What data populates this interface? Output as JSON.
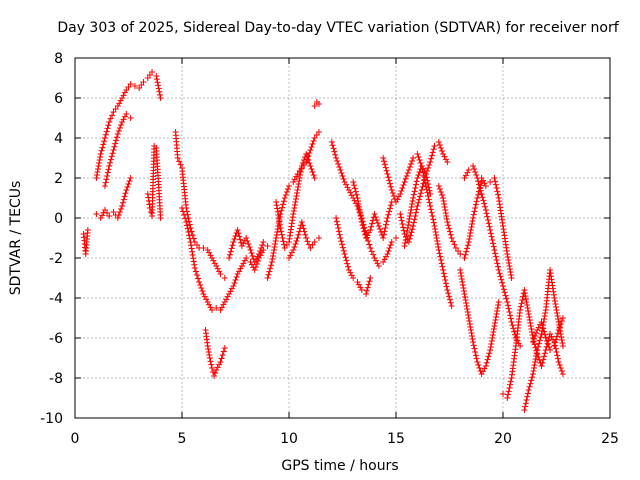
{
  "chart_data": {
    "type": "scatter",
    "title": "Day 303 of 2025, Sidereal Day-to-day VTEC variation (SDTVAR) for receiver norf",
    "xlabel": "GPS time / hours",
    "ylabel": "SDTVAR / TECUs",
    "xlim": [
      0,
      25
    ],
    "ylim": [
      -10,
      8
    ],
    "xticks": [
      0,
      5,
      10,
      15,
      20,
      25
    ],
    "yticks": [
      -10,
      -8,
      -6,
      -4,
      -2,
      0,
      2,
      4,
      6,
      8
    ],
    "xtick_labels": [
      "0",
      "5",
      "10",
      "15",
      "20",
      "25"
    ],
    "ytick_labels": [
      "-10",
      "-8",
      "-6",
      "-4",
      "-2",
      "0",
      "2",
      "4",
      "6",
      "8"
    ],
    "grid": true,
    "marker": "+",
    "color": "#ff0000",
    "series": [
      {
        "name": "s1",
        "x": [
          0.4,
          0.45,
          0.5,
          0.55,
          0.6
        ],
        "y": [
          -0.8,
          -1.3,
          -1.8,
          -1.2,
          -0.6
        ]
      },
      {
        "name": "s2",
        "x": [
          1.0,
          1.2,
          1.4,
          1.6,
          1.8,
          2.0,
          2.2,
          2.4,
          2.6,
          2.8,
          3.0,
          3.2,
          3.4,
          3.6,
          3.8,
          4.0
        ],
        "y": [
          2.0,
          3.2,
          4.0,
          4.8,
          5.3,
          5.6,
          6.0,
          6.4,
          6.7,
          6.6,
          6.5,
          6.8,
          7.0,
          7.3,
          7.1,
          6.0
        ]
      },
      {
        "name": "s3",
        "x": [
          1.0,
          1.2,
          1.4,
          1.6,
          1.8,
          2.0,
          2.2,
          2.4,
          2.6
        ],
        "y": [
          0.2,
          0.0,
          0.4,
          0.1,
          0.3,
          0.0,
          0.6,
          1.4,
          2.0
        ]
      },
      {
        "name": "s4",
        "x": [
          1.4,
          1.6,
          1.8,
          2.0,
          2.2,
          2.4,
          2.6
        ],
        "y": [
          1.6,
          2.6,
          3.4,
          4.2,
          4.8,
          5.2,
          5.0
        ]
      },
      {
        "name": "s5",
        "x": [
          3.4,
          3.5,
          3.6,
          3.7,
          3.8,
          4.0
        ],
        "y": [
          1.2,
          0.5,
          0.1,
          3.6,
          3.5,
          0.0
        ]
      },
      {
        "name": "s6",
        "x": [
          4.7,
          4.8,
          5.0,
          5.2,
          5.4,
          5.6,
          5.8,
          6.0,
          6.2,
          6.4,
          6.6,
          6.8,
          7.0
        ],
        "y": [
          4.3,
          3.0,
          2.5,
          0.5,
          -0.5,
          -1.2,
          -1.5,
          -1.5,
          -1.6,
          -2.0,
          -2.4,
          -2.8,
          -3.0
        ]
      },
      {
        "name": "s7",
        "x": [
          5.0,
          5.2,
          5.4,
          5.6,
          5.8,
          6.0,
          6.2,
          6.4,
          6.6
        ],
        "y": [
          0.5,
          -0.2,
          -1.2,
          -2.5,
          -3.2,
          -3.8,
          -4.2,
          -4.6,
          -4.5
        ]
      },
      {
        "name": "s8",
        "x": [
          6.1,
          6.2,
          6.3,
          6.4,
          6.5,
          6.6,
          6.8,
          7.0
        ],
        "y": [
          -5.6,
          -6.4,
          -7.0,
          -7.5,
          -7.9,
          -7.6,
          -7.2,
          -6.5
        ]
      },
      {
        "name": "s9",
        "x": [
          6.8,
          7.0,
          7.2,
          7.4,
          7.6,
          7.8,
          8.0,
          8.2,
          8.4,
          8.6,
          8.8,
          9.0
        ],
        "y": [
          -4.6,
          -4.2,
          -3.8,
          -3.4,
          -2.8,
          -2.4,
          -2.0,
          -2.2,
          -2.6,
          -2.0,
          -1.6,
          -1.4
        ]
      },
      {
        "name": "s10",
        "x": [
          7.2,
          7.4,
          7.6,
          7.8,
          8.0,
          8.2,
          8.4,
          8.6,
          8.8
        ],
        "y": [
          -2.0,
          -1.2,
          -0.6,
          -1.4,
          -1.0,
          -1.6,
          -2.2,
          -1.8,
          -1.2
        ]
      },
      {
        "name": "s11",
        "x": [
          9.0,
          9.2,
          9.4,
          9.6,
          9.8,
          10.0,
          10.2,
          10.4,
          10.6,
          10.8,
          11.0,
          11.2,
          11.4
        ],
        "y": [
          -3.0,
          -2.2,
          -1.0,
          0.2,
          1.0,
          1.6,
          1.8,
          2.2,
          2.5,
          2.8,
          3.4,
          4.0,
          4.3
        ]
      },
      {
        "name": "s12",
        "x": [
          9.4,
          9.6,
          9.8,
          10.0,
          10.2,
          10.4,
          10.6,
          10.8,
          11.0,
          11.2
        ],
        "y": [
          0.8,
          -0.5,
          -1.5,
          -1.2,
          0.2,
          1.4,
          2.6,
          3.2,
          2.6,
          2.0
        ]
      },
      {
        "name": "s13",
        "x": [
          10.0,
          10.2,
          10.4,
          10.6,
          10.8,
          11.0,
          11.2,
          11.4
        ],
        "y": [
          -2.0,
          -1.6,
          -1.0,
          -0.2,
          -1.0,
          -1.5,
          -1.2,
          -1.0
        ]
      },
      {
        "name": "s14",
        "x": [
          11.2,
          11.3,
          11.4
        ],
        "y": [
          5.6,
          5.8,
          5.7
        ]
      },
      {
        "name": "s15",
        "x": [
          12.0,
          12.2,
          12.4,
          12.6,
          12.8,
          13.0,
          13.2,
          13.4,
          13.6,
          13.8,
          14.0,
          14.2,
          14.4,
          14.6,
          14.8,
          15.0
        ],
        "y": [
          3.8,
          3.0,
          2.4,
          1.8,
          1.4,
          1.0,
          0.6,
          0.0,
          -0.8,
          -1.5,
          -2.0,
          -2.4,
          -2.2,
          -1.8,
          -1.2,
          -1.0
        ]
      },
      {
        "name": "s16",
        "x": [
          12.2,
          12.4,
          12.6,
          12.8,
          13.0,
          13.2,
          13.4,
          13.6,
          13.8
        ],
        "y": [
          0.0,
          -1.0,
          -1.8,
          -2.6,
          -3.0,
          -3.2,
          -3.6,
          -3.8,
          -3.0
        ]
      },
      {
        "name": "s17",
        "x": [
          13.0,
          13.2,
          13.4,
          13.6,
          13.8,
          14.0,
          14.2,
          14.4,
          14.6,
          14.8
        ],
        "y": [
          1.8,
          1.0,
          -0.2,
          -1.0,
          -0.6,
          0.2,
          -0.4,
          -1.0,
          0.0,
          0.8
        ]
      },
      {
        "name": "s18",
        "x": [
          14.4,
          14.6,
          14.8,
          15.0,
          15.2,
          15.4,
          15.6,
          15.8,
          16.0,
          16.2,
          16.4,
          16.6,
          16.8,
          17.0,
          17.2,
          17.4,
          17.6
        ],
        "y": [
          3.0,
          2.2,
          1.4,
          0.8,
          1.2,
          1.8,
          2.4,
          3.0,
          3.2,
          2.6,
          1.6,
          0.6,
          -0.4,
          -1.6,
          -2.6,
          -3.6,
          -4.4
        ]
      },
      {
        "name": "s19",
        "x": [
          15.2,
          15.4,
          15.6,
          15.8,
          16.0,
          16.2,
          16.4,
          16.6,
          16.8,
          17.0,
          17.2,
          17.4
        ],
        "y": [
          0.2,
          -0.8,
          -1.2,
          -0.4,
          0.6,
          1.4,
          2.2,
          2.8,
          3.6,
          3.8,
          3.2,
          2.8
        ]
      },
      {
        "name": "s20",
        "x": [
          15.4,
          15.6,
          15.8,
          16.0,
          16.2,
          16.4,
          16.6
        ],
        "y": [
          -1.4,
          -0.2,
          1.0,
          2.0,
          2.6,
          2.2,
          1.2
        ]
      },
      {
        "name": "s21",
        "x": [
          17.0,
          17.2,
          17.4,
          17.6,
          17.8,
          18.0,
          18.2,
          18.4,
          18.6,
          18.8,
          19.0
        ],
        "y": [
          1.6,
          1.0,
          -0.2,
          -1.0,
          -1.5,
          -1.8,
          -2.0,
          -1.2,
          0.0,
          1.0,
          1.8
        ]
      },
      {
        "name": "s22",
        "x": [
          18.2,
          18.4,
          18.6,
          18.8,
          19.0,
          19.2,
          19.4,
          19.6,
          19.8,
          20.0,
          20.2,
          20.4,
          20.6,
          20.8
        ],
        "y": [
          2.0,
          2.4,
          2.6,
          2.0,
          1.2,
          0.4,
          -0.6,
          -1.6,
          -2.6,
          -3.4,
          -4.2,
          -5.2,
          -6.0,
          -6.4
        ]
      },
      {
        "name": "s23",
        "x": [
          18.0,
          18.2,
          18.4,
          18.6,
          18.8,
          19.0,
          19.2,
          19.4,
          19.6,
          19.8
        ],
        "y": [
          -2.6,
          -3.8,
          -5.0,
          -6.2,
          -7.2,
          -7.8,
          -7.4,
          -6.6,
          -5.4,
          -4.2
        ]
      },
      {
        "name": "s24",
        "x": [
          19.0,
          19.2,
          19.4,
          19.6,
          19.8,
          20.0,
          20.2,
          20.4
        ],
        "y": [
          2.0,
          1.6,
          1.8,
          2.0,
          1.0,
          -0.4,
          -1.8,
          -3.0
        ]
      },
      {
        "name": "s25",
        "x": [
          20.0,
          20.2,
          20.4,
          20.6,
          20.8,
          21.0,
          21.2,
          21.4,
          21.6,
          21.8,
          22.0,
          22.2,
          22.4,
          22.6,
          22.8
        ],
        "y": [
          -8.8,
          -9.0,
          -8.0,
          -6.4,
          -4.6,
          -3.6,
          -4.8,
          -6.0,
          -6.8,
          -7.4,
          -6.6,
          -5.8,
          -6.2,
          -7.2,
          -7.8
        ]
      },
      {
        "name": "s26",
        "x": [
          21.0,
          21.2,
          21.4,
          21.6,
          21.8,
          22.0,
          22.2,
          22.4,
          22.6,
          22.8
        ],
        "y": [
          -9.6,
          -8.6,
          -7.8,
          -6.6,
          -5.8,
          -4.6,
          -2.6,
          -4.0,
          -5.2,
          -6.4
        ]
      },
      {
        "name": "s27",
        "x": [
          21.4,
          21.6,
          21.8,
          22.0,
          22.2,
          22.4,
          22.6,
          22.8
        ],
        "y": [
          -6.2,
          -5.6,
          -5.2,
          -6.0,
          -6.6,
          -6.4,
          -5.6,
          -5.0
        ]
      }
    ]
  }
}
